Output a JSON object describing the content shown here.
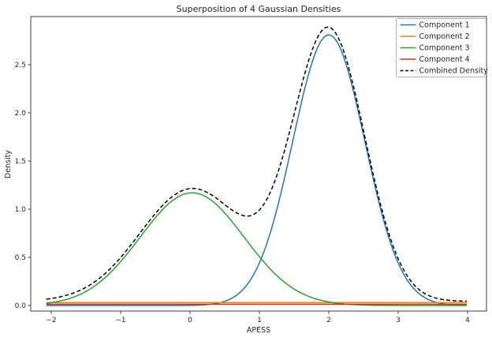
{
  "figure": {
    "background": "#ffffff",
    "spine_color": "#3c3c3c",
    "tick_color": "#262626"
  },
  "chart_data": {
    "type": "line",
    "title": "Superposition of 4 Gaussian Densities",
    "xlabel": "APESS",
    "ylabel": "Density",
    "xlim": [
      -2.3,
      4.3
    ],
    "ylim": [
      -0.06,
      3.0
    ],
    "x_range": [
      -2.07,
      4.0
    ],
    "x_ticks": [
      -2,
      -1,
      0,
      1,
      2,
      3,
      4
    ],
    "x_tick_labels": [
      "−2",
      "−1",
      "0",
      "1",
      "2",
      "3",
      "4"
    ],
    "y_ticks": [
      0,
      0.5,
      1.0,
      1.5,
      2.0,
      2.5
    ],
    "y_tick_labels": [
      "0.0",
      "0.5",
      "1.0",
      "1.5",
      "2.0",
      "2.5"
    ],
    "grid": false,
    "legend_position": "upper right",
    "legend_border_color": "#b0b0b0",
    "sample_x": [
      -2,
      -1.5,
      -1,
      -0.5,
      0,
      0.5,
      1,
      1.5,
      2,
      2.5,
      3,
      3.5,
      4
    ],
    "series": [
      {
        "name": "Component 1",
        "color": "#1f77b4",
        "line_style": "solid",
        "model": "gaussian",
        "mean": 2.0,
        "std": 0.52,
        "peak": 2.81,
        "values": [
          0,
          0,
          0,
          0,
          0.001,
          0.044,
          0.442,
          1.77,
          2.81,
          1.77,
          0.442,
          0.044,
          0.002
        ]
      },
      {
        "name": "Component 2",
        "color": "#ff7f0e",
        "line_style": "solid",
        "model": "flat",
        "value": 0.03,
        "values": [
          0.03,
          0.03,
          0.03,
          0.03,
          0.03,
          0.03,
          0.03,
          0.03,
          0.03,
          0.03,
          0.03,
          0.03,
          0.03
        ]
      },
      {
        "name": "Component 3",
        "color": "#2ca02c",
        "line_style": "solid",
        "model": "gaussian",
        "mean": 0.03,
        "std": 0.75,
        "peak": 1.17,
        "values": [
          0.03,
          0.146,
          0.456,
          0.911,
          1.17,
          0.961,
          0.507,
          0.171,
          0.037,
          0.005,
          0.001,
          0,
          0
        ]
      },
      {
        "name": "Component 4",
        "color": "#d62728",
        "line_style": "solid",
        "model": "flat",
        "value": 0.013,
        "values": [
          0.013,
          0.013,
          0.013,
          0.013,
          0.013,
          0.013,
          0.013,
          0.013,
          0.013,
          0.013,
          0.013,
          0.013,
          0.013
        ]
      },
      {
        "name": "Combined Density",
        "color": "#000000",
        "line_style": "dashed",
        "model": "sum",
        "values": [
          0.073,
          0.189,
          0.499,
          0.954,
          1.214,
          1.048,
          0.992,
          1.984,
          2.89,
          1.818,
          0.486,
          0.087,
          0.045
        ]
      }
    ]
  }
}
